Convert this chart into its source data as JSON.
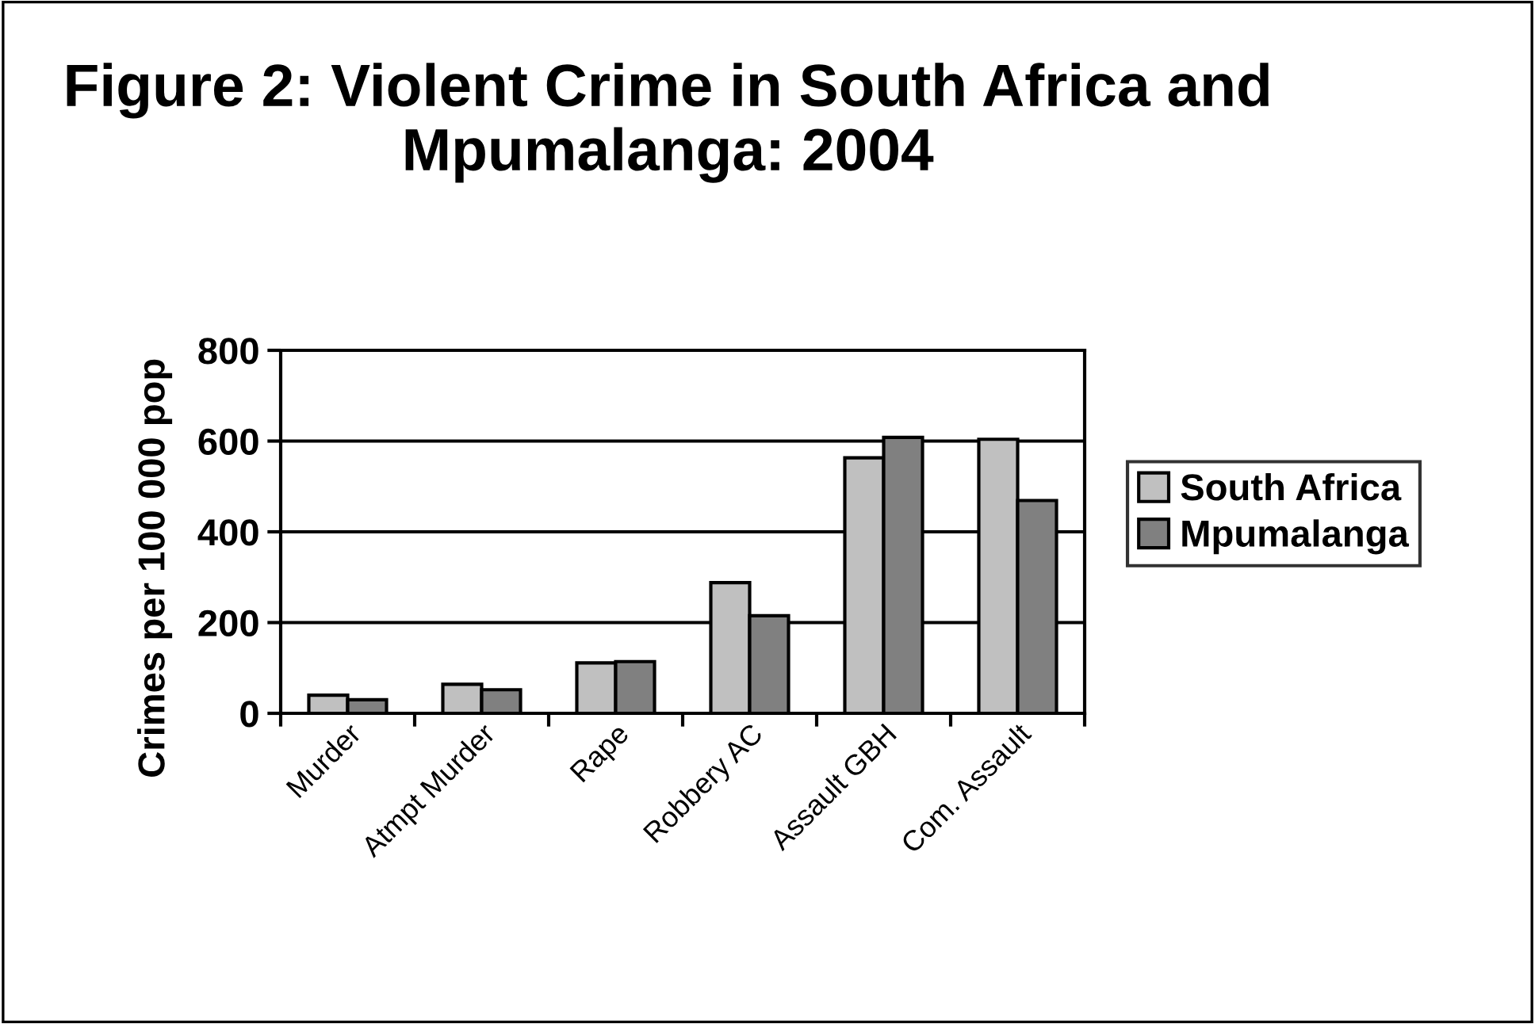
{
  "chart_data": {
    "type": "bar",
    "title": "Figure 2: Violent Crime in South Africa and Mpumalanga: 2004",
    "ylabel": "Crimes per 100 000 pop",
    "categories": [
      "Murder",
      "Atmpt Murder",
      "Rape",
      "Robbery AC",
      "Assault GBH",
      "Com. Assault"
    ],
    "series": [
      {
        "name": "South Africa",
        "color": "#c0c0c0",
        "values": [
          40,
          64,
          111,
          288,
          563,
          604
        ]
      },
      {
        "name": "Mpumalanga",
        "color": "#808080",
        "values": [
          30,
          52,
          114,
          215,
          608,
          469
        ]
      }
    ],
    "ylim": [
      0,
      800
    ],
    "yticks": [
      0,
      200,
      400,
      600,
      800
    ],
    "grid": "y",
    "legend": "right"
  }
}
